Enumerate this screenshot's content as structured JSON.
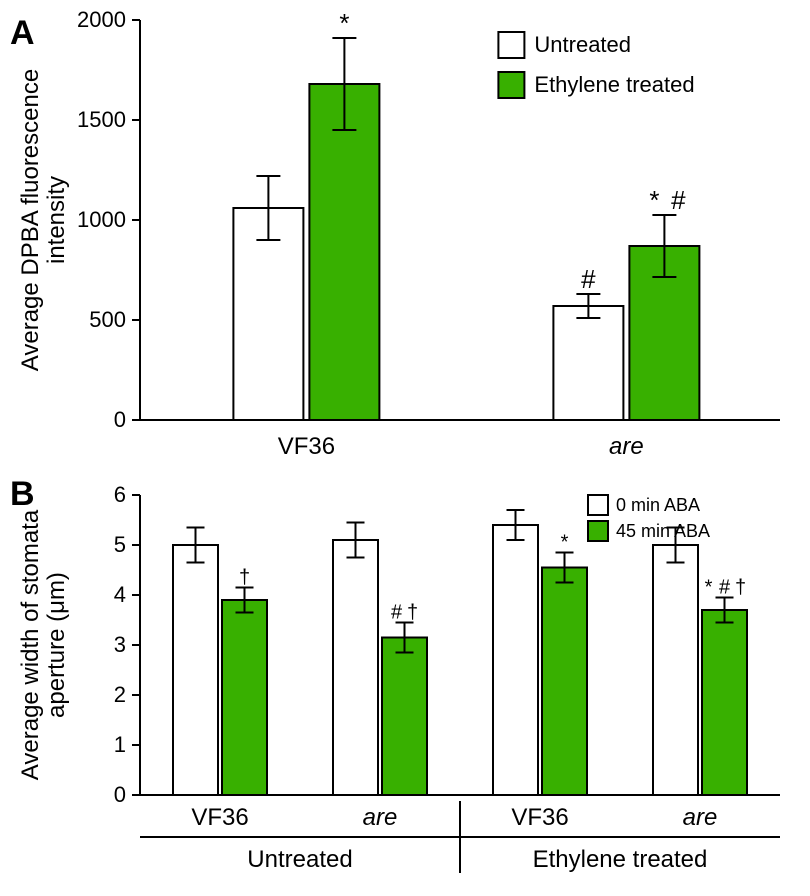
{
  "colors": {
    "background": "#ffffff",
    "axis": "#000000",
    "bar_untreated_fill": "#ffffff",
    "bar_treated_fill": "#38b000",
    "bar_stroke": "#000000",
    "error_bar": "#000000",
    "text": "#000000"
  },
  "typography": {
    "panel_label_fontsize": 34,
    "panel_label_weight": "bold",
    "axis_label_fontsize": 24,
    "tick_fontsize": 22,
    "legend_fontsize": 22,
    "group_label_fontsize": 24,
    "are_italic": true,
    "significance_fontsize": 26
  },
  "panelA": {
    "label": "A",
    "type": "bar",
    "ylabel_line1": "Average DPBA fluorescence",
    "ylabel_line2": "intensity",
    "ylim": [
      0,
      2000
    ],
    "ytick_step": 500,
    "yticks": [
      0,
      500,
      1000,
      1500,
      2000
    ],
    "groups": [
      "VF36",
      "are"
    ],
    "legend": [
      {
        "key": "untreated",
        "label": "Untreated",
        "swatch_fill": "#ffffff",
        "swatch_stroke": "#000000"
      },
      {
        "key": "treated",
        "label": "Ethylene treated",
        "swatch_fill": "#38b000",
        "swatch_stroke": "#000000"
      }
    ],
    "bars": [
      {
        "group": "VF36",
        "series": "untreated",
        "value": 1060,
        "err": 160,
        "marks": []
      },
      {
        "group": "VF36",
        "series": "treated",
        "value": 1680,
        "err": 230,
        "marks": [
          "*"
        ]
      },
      {
        "group": "are",
        "series": "untreated",
        "value": 570,
        "err": 60,
        "marks": [
          "#"
        ]
      },
      {
        "group": "are",
        "series": "treated",
        "value": 870,
        "err": 155,
        "marks": [
          "*",
          "#"
        ]
      }
    ],
    "bar_width_rel": 0.7,
    "group_gap_rel": 1.6
  },
  "panelB": {
    "label": "B",
    "type": "bar",
    "ylabel_line1": "Average width of stomata",
    "ylabel_line2": "aperture (μm)",
    "ylim": [
      0,
      6
    ],
    "ytick_step": 1,
    "yticks": [
      0,
      1,
      2,
      3,
      4,
      5,
      6
    ],
    "super_groups": [
      "Untreated",
      "Ethylene treated"
    ],
    "groups": [
      "VF36",
      "are",
      "VF36",
      "are"
    ],
    "legend": [
      {
        "key": "aba0",
        "label": "0 min ABA",
        "swatch_fill": "#ffffff",
        "swatch_stroke": "#000000"
      },
      {
        "key": "aba45",
        "label": "45 min ABA",
        "swatch_fill": "#38b000",
        "swatch_stroke": "#000000"
      }
    ],
    "bars": [
      {
        "super": "Untreated",
        "group": "VF36",
        "series": "aba0",
        "value": 5.0,
        "err": 0.35,
        "marks": []
      },
      {
        "super": "Untreated",
        "group": "VF36",
        "series": "aba45",
        "value": 3.9,
        "err": 0.25,
        "marks": [
          "†"
        ]
      },
      {
        "super": "Untreated",
        "group": "are",
        "series": "aba0",
        "value": 5.1,
        "err": 0.35,
        "marks": []
      },
      {
        "super": "Untreated",
        "group": "are",
        "series": "aba45",
        "value": 3.15,
        "err": 0.3,
        "marks": [
          "#",
          "†"
        ]
      },
      {
        "super": "Ethylene treated",
        "group": "VF36",
        "series": "aba0",
        "value": 5.4,
        "err": 0.3,
        "marks": []
      },
      {
        "super": "Ethylene treated",
        "group": "VF36",
        "series": "aba45",
        "value": 4.55,
        "err": 0.3,
        "marks": [
          "*"
        ]
      },
      {
        "super": "Ethylene treated",
        "group": "are",
        "series": "aba0",
        "value": 5.0,
        "err": 0.35,
        "marks": []
      },
      {
        "super": "Ethylene treated",
        "group": "are",
        "series": "aba45",
        "value": 3.7,
        "err": 0.25,
        "marks": [
          "*",
          "#",
          "†"
        ]
      }
    ],
    "bar_width_rel": 0.7,
    "group_gap_rel": 0.9
  }
}
